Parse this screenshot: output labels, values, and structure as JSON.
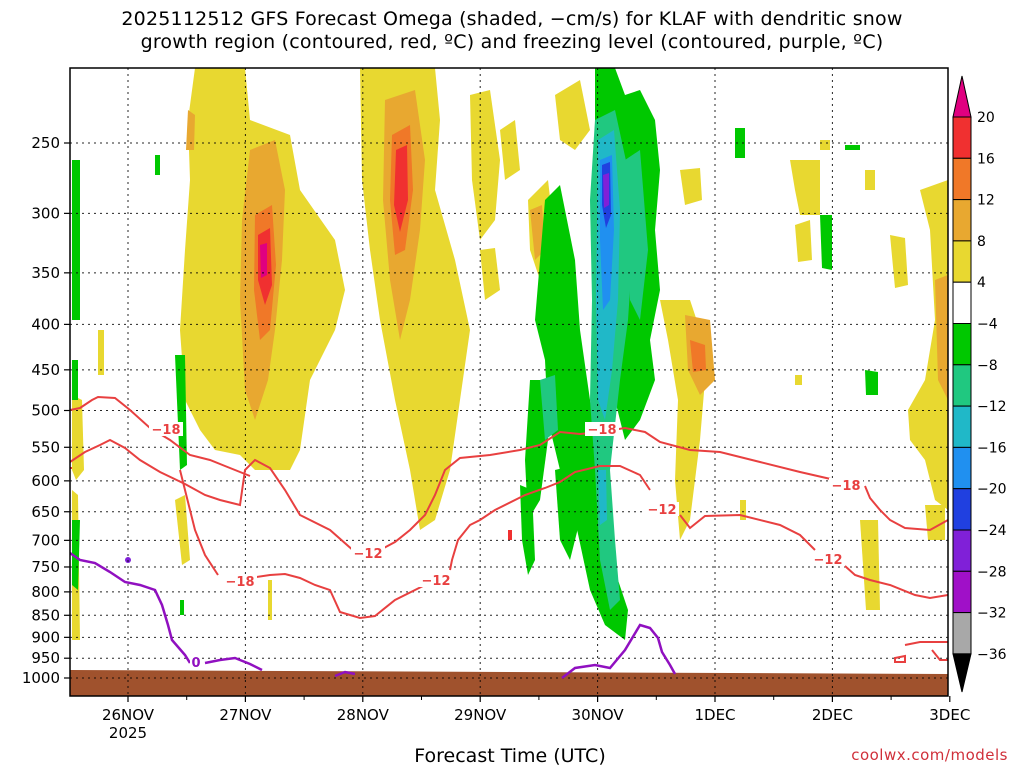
{
  "chart_data": {
    "type": "heatmap",
    "title_lines": [
      "2025112512 GFS Forecast Omega (shaded, −cm/s) for KLAF with dendritic snow",
      "growth region (contoured, red, ºC) and freezing level (contoured, purple, ºC)"
    ],
    "xlabel": "Forecast Time (UTC)",
    "credit": "coolwx.com/models",
    "x_ticks": [
      "26NOV",
      "27NOV",
      "28NOV",
      "29NOV",
      "30NOV",
      "1DEC",
      "2DEC",
      "3DEC"
    ],
    "x_year_label": "2025",
    "y_ticks": [
      "250",
      "300",
      "350",
      "400",
      "450",
      "500",
      "550",
      "600",
      "650",
      "700",
      "750",
      "800",
      "850",
      "900",
      "950",
      "1000"
    ],
    "colorbar": {
      "levels": [
        "20",
        "16",
        "12",
        "8",
        "4",
        "−4",
        "−8",
        "−12",
        "−16",
        "−20",
        "−24",
        "−28",
        "−32",
        "−36"
      ],
      "colors": [
        "#e00080",
        "#f03030",
        "#f07828",
        "#e8a830",
        "#e8d830",
        "#ffffff",
        "#00c800",
        "#20c880",
        "#20b8c8",
        "#2090f0",
        "#2040e0",
        "#8020d8",
        "#a010c8",
        "#a8a8a8",
        "#000000"
      ]
    },
    "contour_labels_red": [
      "−18",
      "−18",
      "−12",
      "−18",
      "−12",
      "−12",
      "−18",
      "−12"
    ],
    "contour_labels_purple": [
      "0"
    ],
    "grid": true
  }
}
